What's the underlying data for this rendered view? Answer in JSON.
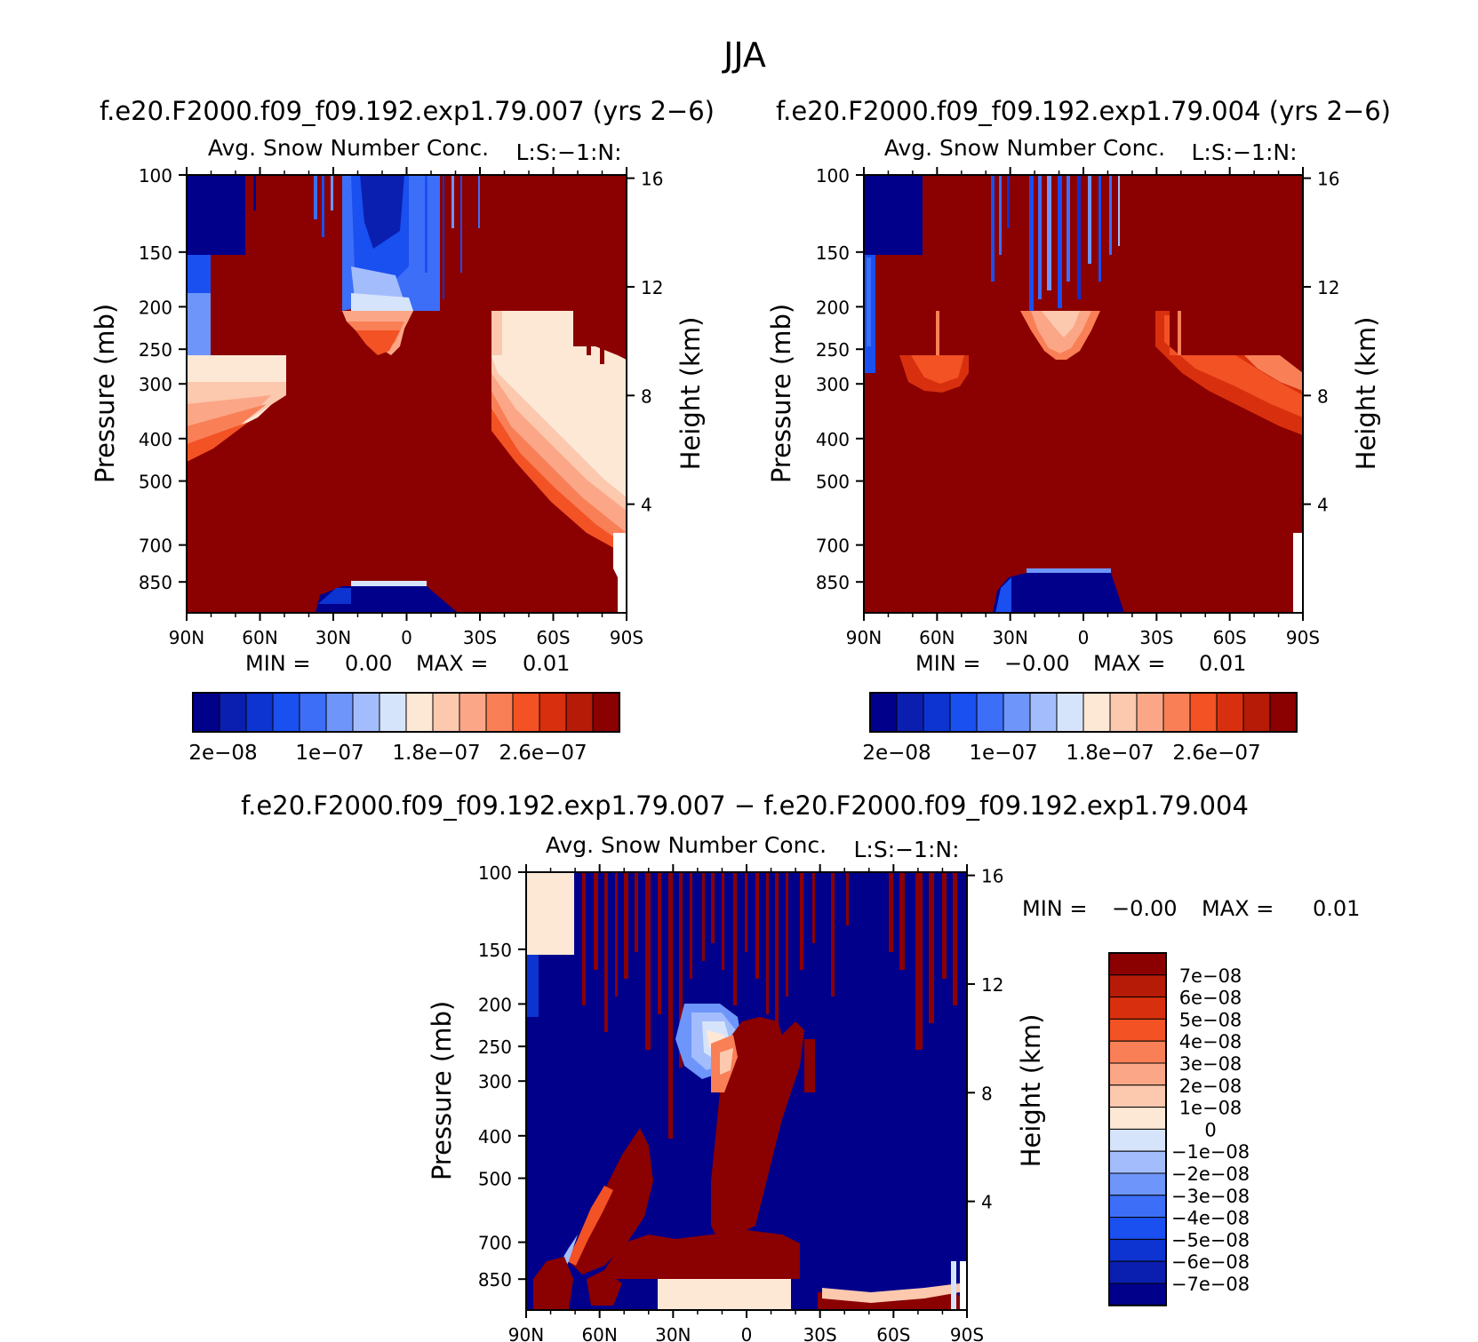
{
  "figure": {
    "season": "JJA",
    "panel_title_left": "f.e20.F2000.f09_f09.192.exp1.79.007 (yrs 2−6)",
    "panel_title_right": "f.e20.F2000.f09_f09.192.exp1.79.004 (yrs 2−6)",
    "panel_title_diff": "f.e20.F2000.f09_f09.192.exp1.79.007 − f.e20.F2000.f09_f09.192.exp1.79.004"
  },
  "palette": {
    "abs": [
      "#00008b",
      "#0a1fb0",
      "#0d33d1",
      "#1a4ff0",
      "#3d6ef7",
      "#6e95fa",
      "#a3bdfc",
      "#d6e4fb",
      "#fde8d6",
      "#fcc8ae",
      "#fba787",
      "#f97f57",
      "#f25224",
      "#d8300e",
      "#b51b07",
      "#8b0000"
    ],
    "diff": [
      "#00008b",
      "#0a1fb0",
      "#0d33d1",
      "#1a4ff0",
      "#3d6ef7",
      "#6e95fa",
      "#a3bdfc",
      "#d6e4fb",
      "#fde8d6",
      "#fcc8ae",
      "#fba787",
      "#f97f57",
      "#f25224",
      "#d8300e",
      "#b51b07",
      "#8b0000"
    ]
  },
  "chart_data": [
    {
      "type": "heatmap",
      "id": "left",
      "title": "Avg. Snow Number Conc.",
      "title_right": "L:S:−1:N:",
      "ylabel": "Pressure (mb)",
      "ylabel_right": "Height (km)",
      "x_ticks": [
        "90N",
        "60N",
        "30N",
        "0",
        "30S",
        "60S",
        "90S"
      ],
      "x_range": [
        90,
        -90
      ],
      "y_ticks": [
        100,
        150,
        200,
        250,
        300,
        400,
        500,
        700,
        850
      ],
      "y_range": [
        100,
        1000
      ],
      "height_ticks": [
        16,
        12,
        8,
        4
      ],
      "min_label": "MIN =",
      "min_value": "0.00",
      "max_label": "MAX =",
      "max_value": "0.01",
      "colorbar_labels": [
        "2e−08",
        "1e−07",
        "1.8e−07",
        "2.6e−07"
      ]
    },
    {
      "type": "heatmap",
      "id": "right",
      "title": "Avg. Snow Number Conc.",
      "title_right": "L:S:−1:N:",
      "ylabel": "Pressure (mb)",
      "ylabel_right": "Height (km)",
      "x_ticks": [
        "90N",
        "60N",
        "30N",
        "0",
        "30S",
        "60S",
        "90S"
      ],
      "x_range": [
        90,
        -90
      ],
      "y_ticks": [
        100,
        150,
        200,
        250,
        300,
        400,
        500,
        700,
        850
      ],
      "y_range": [
        100,
        1000
      ],
      "height_ticks": [
        16,
        12,
        8,
        4
      ],
      "min_label": "MIN =",
      "min_value": "−0.00",
      "max_label": "MAX =",
      "max_value": "0.01",
      "colorbar_labels": [
        "2e−08",
        "1e−07",
        "1.8e−07",
        "2.6e−07"
      ]
    },
    {
      "type": "heatmap",
      "id": "diff",
      "title": "Avg. Snow Number Conc.",
      "title_right": "L:S:−1:N:",
      "ylabel": "Pressure (mb)",
      "ylabel_right": "Height (km)",
      "x_ticks": [
        "90N",
        "60N",
        "30N",
        "0",
        "30S",
        "60S",
        "90S"
      ],
      "x_range": [
        90,
        -90
      ],
      "y_ticks": [
        100,
        150,
        200,
        250,
        300,
        400,
        500,
        700,
        850
      ],
      "y_range": [
        100,
        1000
      ],
      "height_ticks": [
        16,
        12,
        8,
        4
      ],
      "min_label": "MIN =",
      "min_value": "−0.00",
      "max_label": "MAX =",
      "max_value": "0.01",
      "colorbar_labels": [
        "7e−08",
        "6e−08",
        "5e−08",
        "4e−08",
        "3e−08",
        "2e−08",
        "1e−08",
        "0",
        "−1e−08",
        "−2e−08",
        "−3e−08",
        "−4e−08",
        "−5e−08",
        "−6e−08",
        "−7e−08"
      ]
    }
  ]
}
